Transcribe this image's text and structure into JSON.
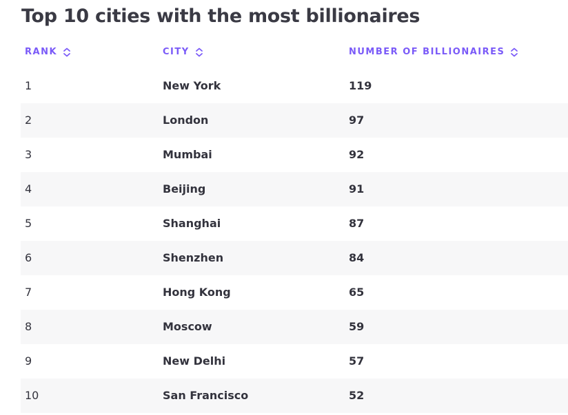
{
  "title": "Top 10 cities with the most billionaires",
  "accent_color": "#7a5af8",
  "columns": [
    {
      "label": "RANK",
      "icon": "sort-icon"
    },
    {
      "label": "CITY",
      "icon": "sort-icon"
    },
    {
      "label": "NUMBER OF BILLIONAIRES",
      "icon": "sort-icon"
    }
  ],
  "rows": [
    {
      "rank": "1",
      "city": "New York",
      "count": "119"
    },
    {
      "rank": "2",
      "city": "London",
      "count": "97"
    },
    {
      "rank": "3",
      "city": "Mumbai",
      "count": "92"
    },
    {
      "rank": "4",
      "city": "Beijing",
      "count": "91"
    },
    {
      "rank": "5",
      "city": "Shanghai",
      "count": "87"
    },
    {
      "rank": "6",
      "city": "Shenzhen",
      "count": "84"
    },
    {
      "rank": "7",
      "city": "Hong Kong",
      "count": "65"
    },
    {
      "rank": "8",
      "city": "Moscow",
      "count": "59"
    },
    {
      "rank": "9",
      "city": "New Delhi",
      "count": "57"
    },
    {
      "rank": "10",
      "city": "San Francisco",
      "count": "52"
    }
  ]
}
